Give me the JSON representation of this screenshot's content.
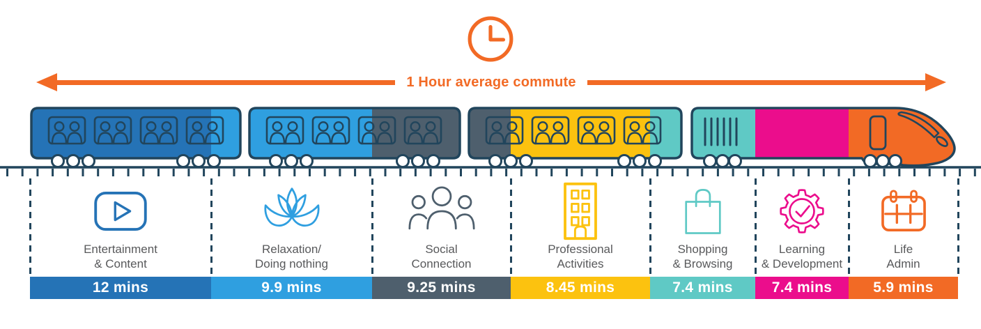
{
  "header": {
    "title": "1 Hour average commute"
  },
  "colors": {
    "accent_orange": "#F26A25",
    "outline_navy": "#21455C",
    "label_gray": "#58595B"
  },
  "columns": [
    {
      "icon": "play-icon",
      "line1": "Entertainment",
      "line2": "& Content",
      "duration": "12 mins",
      "color": "#2573B6"
    },
    {
      "icon": "lotus-icon",
      "line1": "Relaxation/",
      "line2": "Doing nothing",
      "duration": "9.9 mins",
      "color": "#2F9FE0"
    },
    {
      "icon": "people-icon",
      "line1": "Social",
      "line2": "Connection",
      "duration": "9.25 mins",
      "color": "#4E5F6D"
    },
    {
      "icon": "building-icon",
      "line1": "Professional",
      "line2": "Activities",
      "duration": "8.45 mins",
      "color": "#FCC20F"
    },
    {
      "icon": "shopping-bag-icon",
      "line1": "Shopping",
      "line2": "& Browsing",
      "duration": "7.4 mins",
      "color": "#5FC9C5"
    },
    {
      "icon": "gear-check-icon",
      "line1": "Learning",
      "line2": "& Development",
      "duration": "7.4 mins",
      "color": "#EB0D8C"
    },
    {
      "icon": "calendar-icon",
      "line1": "Life",
      "line2": "Admin",
      "duration": "5.9 mins",
      "color": "#F26A25"
    }
  ],
  "chart_data": {
    "type": "bar",
    "title": "1 Hour average commute",
    "orientation": "horizontal-proportional",
    "categories": [
      "Entertainment & Content",
      "Relaxation/Doing nothing",
      "Social Connection",
      "Professional Activities",
      "Shopping & Browsing",
      "Learning & Development",
      "Life Admin"
    ],
    "values": [
      12,
      9.9,
      9.25,
      8.45,
      7.4,
      7.4,
      5.9
    ],
    "unit": "mins",
    "value_labels": [
      "12 mins",
      "9.9 mins",
      "9.25 mins",
      "8.45 mins",
      "7.4 mins",
      "7.4 mins",
      "5.9 mins"
    ],
    "colors": [
      "#2573B6",
      "#2F9FE0",
      "#4E5F6D",
      "#FCC20F",
      "#5FC9C5",
      "#EB0D8C",
      "#F26A25"
    ],
    "legend": "none",
    "grid": false
  }
}
